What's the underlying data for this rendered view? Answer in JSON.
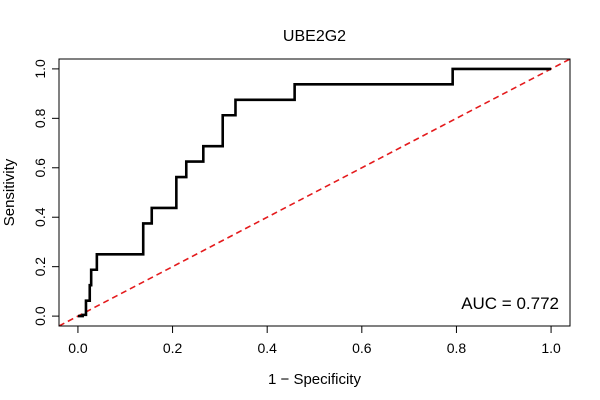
{
  "chart_data": {
    "type": "line",
    "title": "UBE2G2",
    "xlabel": "1 − Specificity",
    "ylabel": "Sensitivity",
    "xlim": [
      -0.04,
      1.04
    ],
    "ylim": [
      -0.04,
      1.04
    ],
    "x_ticks": [
      0.0,
      0.2,
      0.4,
      0.6,
      0.8,
      1.0
    ],
    "x_tick_labels": [
      "0.0",
      "0.2",
      "0.4",
      "0.6",
      "0.8",
      "1.0"
    ],
    "y_ticks": [
      0.0,
      0.2,
      0.4,
      0.6,
      0.8,
      1.0
    ],
    "y_tick_labels": [
      "0.0",
      "0.2",
      "0.4",
      "0.6",
      "0.8",
      "1.0"
    ],
    "grid": false,
    "annotation": "AUC = 0.772",
    "colors": {
      "roc": "#000000",
      "diagonal": "#e41a1c"
    },
    "series": [
      {
        "points": [
          [
            0.0,
            0.0
          ],
          [
            0.01,
            0.0
          ],
          [
            0.01,
            0.005
          ],
          [
            0.017,
            0.005
          ],
          [
            0.017,
            0.0625
          ],
          [
            0.025,
            0.0625
          ],
          [
            0.025,
            0.125
          ],
          [
            0.028,
            0.125
          ],
          [
            0.028,
            0.1875
          ],
          [
            0.04,
            0.1875
          ],
          [
            0.04,
            0.25
          ],
          [
            0.138,
            0.25
          ],
          [
            0.138,
            0.375
          ],
          [
            0.156,
            0.375
          ],
          [
            0.156,
            0.4375
          ],
          [
            0.208,
            0.4375
          ],
          [
            0.208,
            0.5625
          ],
          [
            0.229,
            0.5625
          ],
          [
            0.229,
            0.625
          ],
          [
            0.265,
            0.625
          ],
          [
            0.265,
            0.6875
          ],
          [
            0.306,
            0.6875
          ],
          [
            0.306,
            0.8125
          ],
          [
            0.333,
            0.8125
          ],
          [
            0.333,
            0.875
          ],
          [
            0.458,
            0.875
          ],
          [
            0.458,
            0.9375
          ],
          [
            0.792,
            0.9375
          ],
          [
            0.792,
            1.0
          ],
          [
            1.0,
            1.0
          ]
        ]
      },
      {
        "style": "dashed",
        "points": [
          [
            -0.04,
            -0.04
          ],
          [
            1.04,
            1.04
          ]
        ]
      }
    ]
  }
}
